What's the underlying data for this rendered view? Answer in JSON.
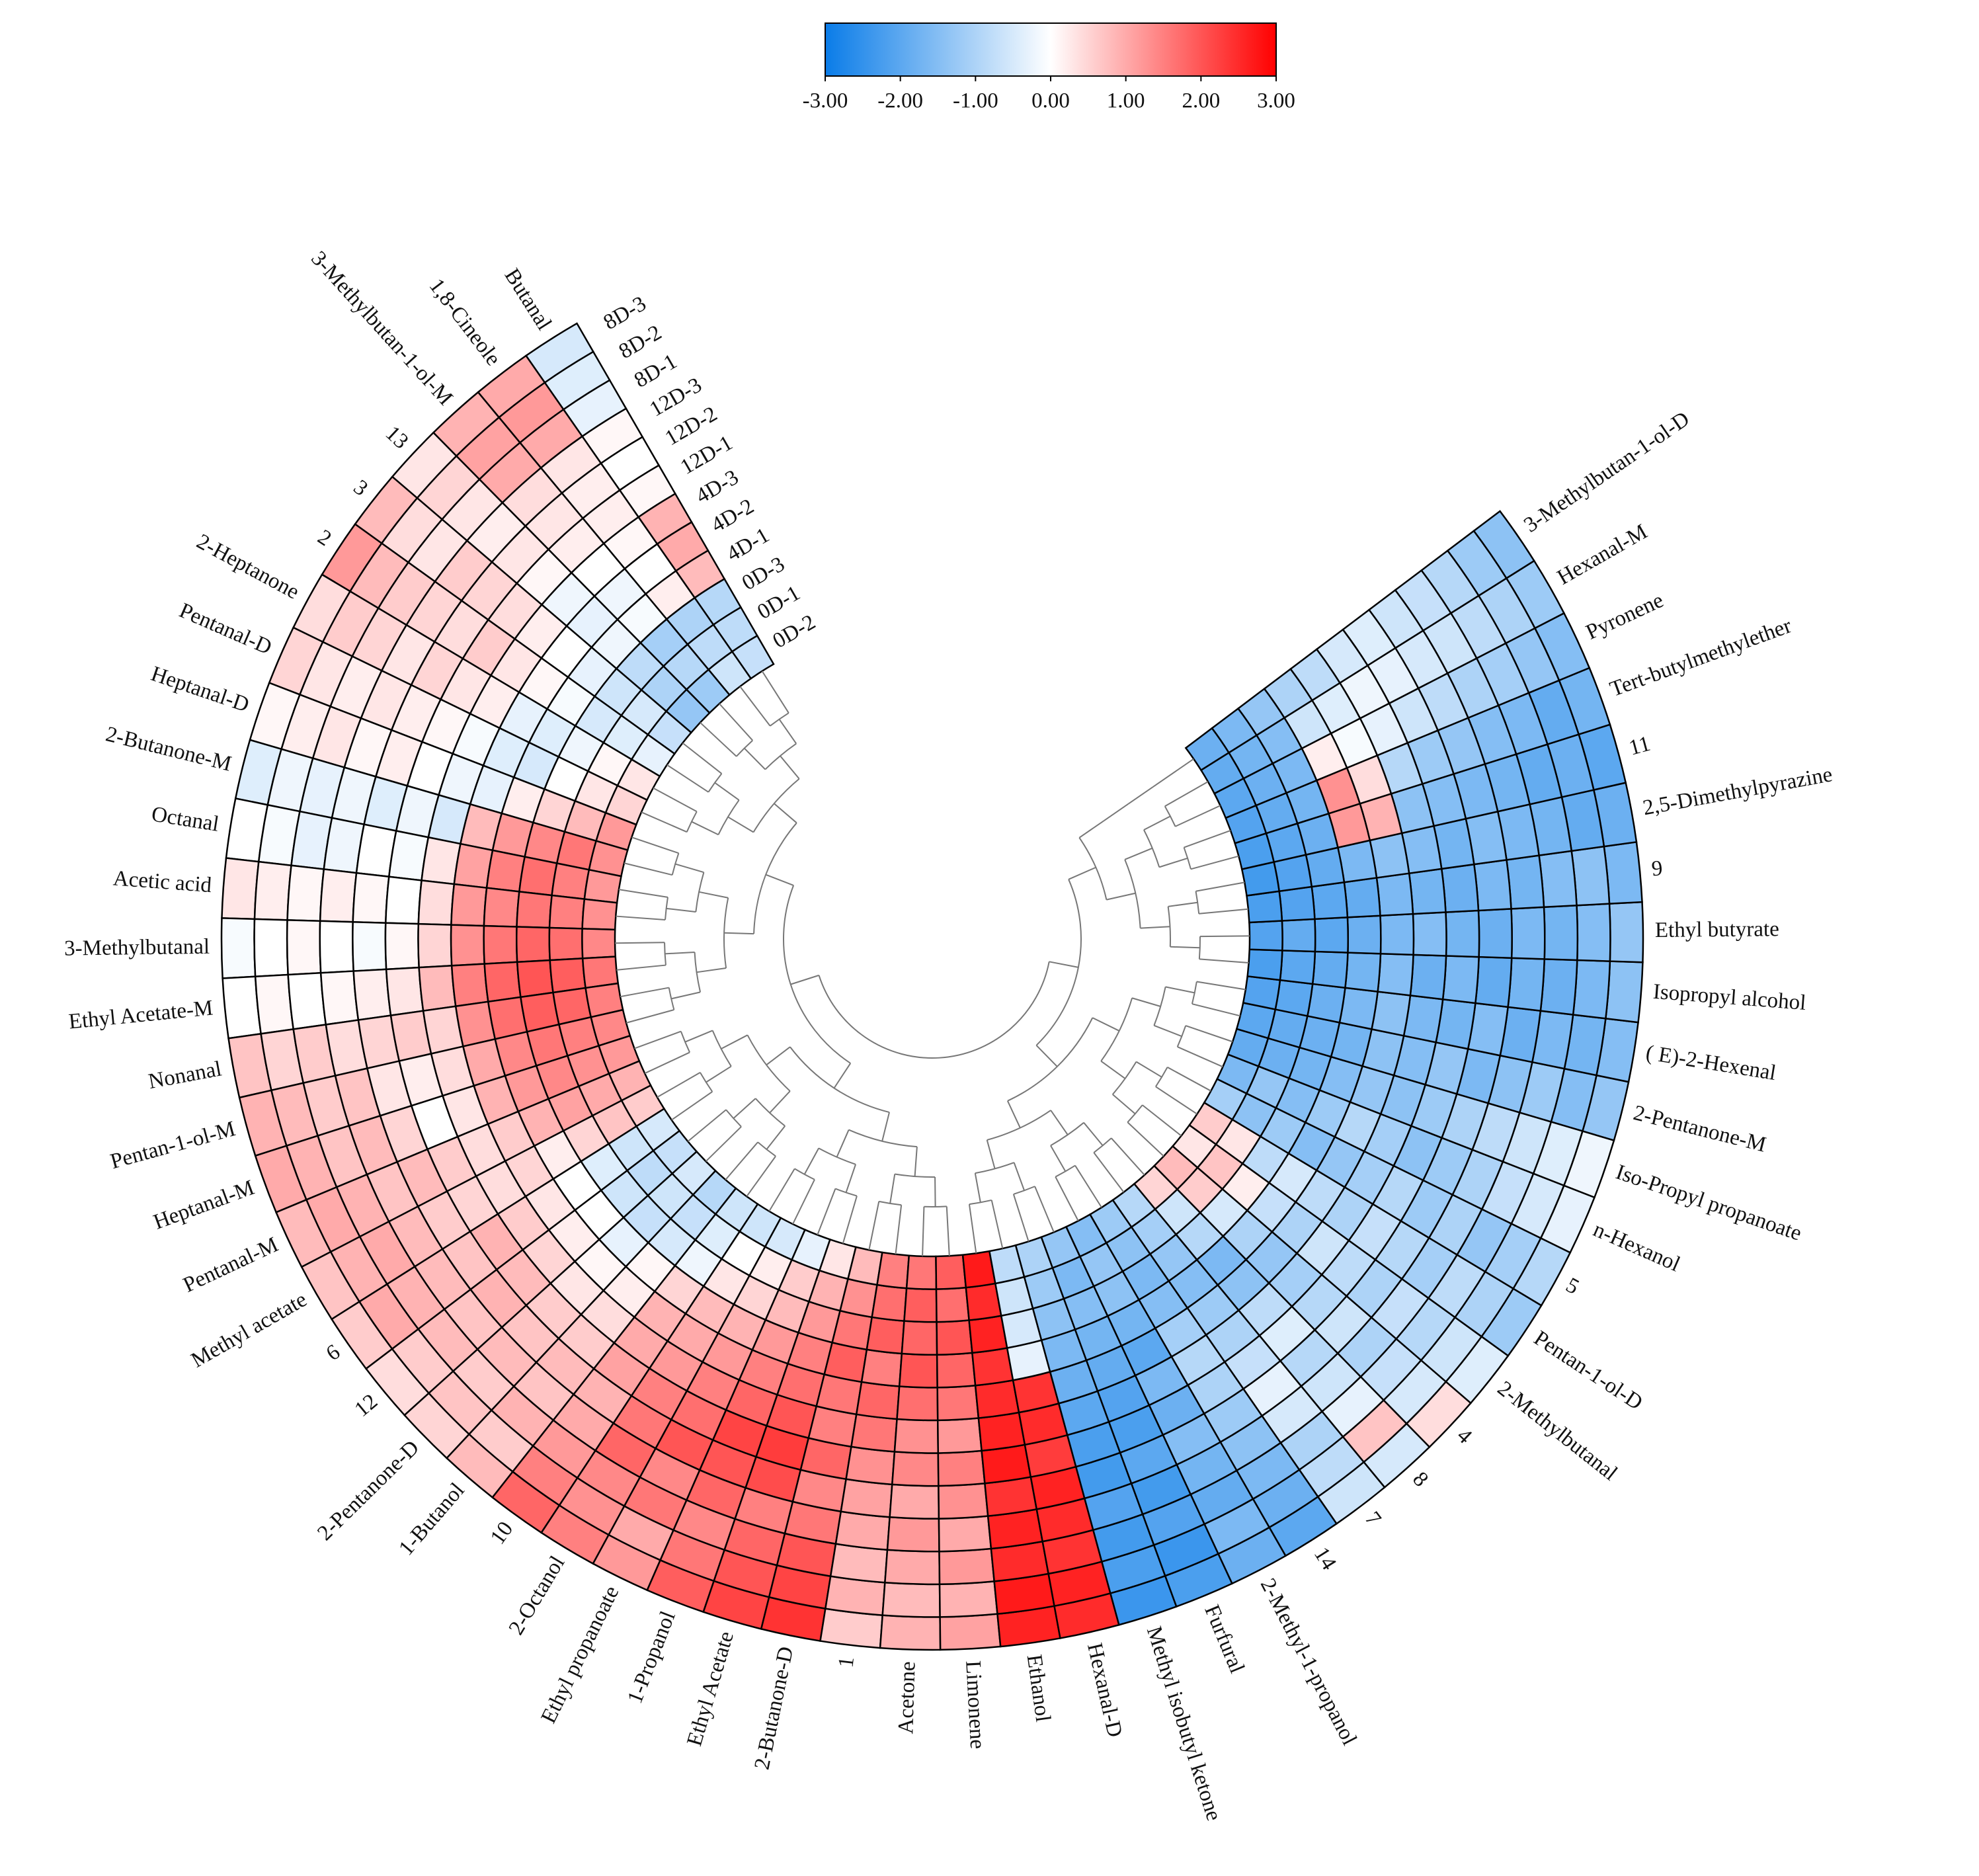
{
  "chart_data": {
    "type": "heatmap",
    "categories": [
      "Butanal",
      "1,8-Cineole",
      "3-Methylbutan-1-ol-M",
      "13",
      "3",
      "2",
      "2-Heptanone",
      "Pentanal-D",
      "Heptanal-D",
      "2-Butanone-M",
      "Octanal",
      "Acetic acid",
      "3-Methylbutanal",
      "Ethyl Acetate-M",
      "Nonanal",
      "Pentan-1-ol-M",
      "Heptanal-M",
      "Pentanal-M",
      "Methyl acetate",
      "6",
      "12",
      "2-Pentanone-D",
      "1-Butanol",
      "10",
      "2-Octanol",
      "Ethyl propanoate",
      "1-Propanol",
      "Ethyl Acetate",
      "2-Butanone-D",
      "1",
      "Acetone",
      "Limonene",
      "Ethanol",
      "Hexanal-D",
      "Methyl isobutyl ketone",
      "Furfural",
      "2-Methyl-1-propanol",
      "14",
      "7",
      "8",
      "4",
      "2-Methylbutanal",
      "Pentan-1-ol-D",
      "5",
      "n-Hexanol",
      "Iso-Propyl propanoate",
      "2-Pentanone-M",
      "( E)-2-Hexenal",
      "Isopropyl alcohol",
      "Ethyl butyrate",
      "9",
      "2,5-Dimethylpyrazine",
      "11",
      "Tert-butylmethylether",
      "Pyronene",
      "Hexanal-M",
      "3-Methylbutan-1-ol-D"
    ],
    "rings": [
      "8D-3",
      "8D-2",
      "8D-1",
      "12D-3",
      "12D-2",
      "12D-1",
      "4D-3",
      "4D-2",
      "4D-1",
      "0D-3",
      "0D-1",
      "0D-2"
    ],
    "values": [
      [
        -0.5,
        -0.4,
        -0.3,
        0.1,
        0,
        0.1,
        0.9,
        1.0,
        0.8,
        -0.9,
        -0.8,
        -0.7
      ],
      [
        1.0,
        1.2,
        1.0,
        0.3,
        0.2,
        0.2,
        0.1,
        0,
        0.2,
        -1.0,
        -0.8,
        -0.6
      ],
      [
        0.9,
        1.1,
        1.0,
        0.4,
        0.3,
        0.2,
        0,
        -0.2,
        -0.1,
        -1.1,
        -0.9,
        -1.2
      ],
      [
        0.3,
        0.5,
        0.3,
        0.2,
        0.3,
        0.1,
        -0.2,
        -0.3,
        -0.2,
        -0.8,
        -1.0,
        -1.3
      ],
      [
        0.8,
        0.4,
        0.3,
        0.6,
        0.5,
        0.4,
        0.2,
        0,
        -0.3,
        -0.6,
        -0.5,
        -0.7
      ],
      [
        1.2,
        0.8,
        0.6,
        0.5,
        0.4,
        0.6,
        0.3,
        0.1,
        -0.1,
        -0.5,
        -0.4,
        -0.3
      ],
      [
        0.4,
        0.6,
        0.5,
        0.3,
        0.5,
        0.3,
        0.2,
        -0.3,
        -0.4,
        -0.2,
        0.1,
        0.3
      ],
      [
        0.5,
        0.3,
        0.2,
        0.3,
        0.2,
        0.1,
        -0.1,
        -0.4,
        -0.5,
        0,
        0.3,
        0.5
      ],
      [
        0.1,
        0.2,
        0.3,
        0.1,
        0.2,
        0,
        -0.2,
        -0.3,
        0.2,
        0.5,
        0.8,
        1.2
      ],
      [
        -0.4,
        -0.2,
        -0.3,
        -0.2,
        -0.4,
        -0.2,
        -0.5,
        0.8,
        1.2,
        1.4,
        1.6,
        1.3
      ],
      [
        0,
        -0.1,
        -0.3,
        -0.2,
        0,
        -0.1,
        0.3,
        1.1,
        1.5,
        1.7,
        1.5,
        1.2
      ],
      [
        0.3,
        0.2,
        0.1,
        0.2,
        0.1,
        0,
        0.4,
        1.2,
        1.4,
        1.6,
        1.5,
        1.3
      ],
      [
        -0.1,
        0,
        0.1,
        0,
        -0.1,
        0.1,
        0.5,
        1.3,
        1.6,
        1.8,
        1.7,
        1.4
      ],
      [
        0,
        0.1,
        0,
        0.1,
        0.2,
        0.3,
        0.8,
        1.5,
        1.8,
        2.0,
        1.9,
        1.6
      ],
      [
        0.7,
        0.5,
        0.6,
        0.4,
        0.5,
        0.6,
        0.5,
        1.3,
        1.7,
        1.9,
        1.8,
        1.5
      ],
      [
        0.9,
        0.8,
        0.6,
        0.7,
        0.3,
        0.2,
        0.4,
        1.0,
        1.4,
        1.6,
        1.5,
        1.4
      ],
      [
        1.0,
        0.9,
        0.7,
        0.8,
        0.5,
        0,
        0.3,
        0.9,
        1.2,
        1.4,
        1.3,
        1.2
      ],
      [
        0.8,
        1.0,
        0.9,
        0.7,
        0.8,
        0.6,
        0.4,
        0.6,
        0.9,
        1.1,
        1.0,
        0.9
      ],
      [
        0.7,
        0.9,
        1.0,
        0.8,
        0.6,
        0.5,
        0.4,
        0.5,
        0.2,
        0.5,
        0.7,
        0.6
      ],
      [
        0.6,
        1.0,
        0.9,
        0.8,
        0.7,
        0.9,
        0.6,
        0.3,
        0,
        -0.4,
        -0.6,
        -0.5
      ],
      [
        0.4,
        0.6,
        0.8,
        0.7,
        0.9,
        0.8,
        0.5,
        0.2,
        0,
        -0.6,
        -0.8,
        -0.7
      ],
      [
        0.5,
        0.7,
        0.6,
        0.8,
        0.7,
        0.6,
        0.3,
        0.1,
        -0.3,
        -0.7,
        -0.6,
        -0.5
      ],
      [
        0.8,
        0.6,
        0.9,
        0.7,
        0.8,
        0.6,
        0.4,
        0.2,
        0.1,
        -0.5,
        -0.7,
        -0.9
      ],
      [
        1.8,
        1.5,
        1.2,
        1.0,
        0.9,
        1.1,
        1.0,
        0.9,
        0.5,
        -0.2,
        -0.4,
        -0.6
      ],
      [
        1.5,
        1.3,
        1.4,
        1.8,
        1.6,
        1.5,
        1.2,
        1.0,
        0.8,
        0.3,
        0,
        -0.6
      ],
      [
        1.2,
        1.0,
        1.6,
        1.4,
        2.0,
        1.7,
        1.5,
        1.2,
        0.9,
        0.5,
        0.2,
        -0.5
      ],
      [
        1.9,
        1.6,
        1.4,
        1.8,
        2.0,
        2.2,
        1.8,
        1.5,
        1.2,
        0.8,
        0.6,
        -0.3
      ],
      [
        2.2,
        2.0,
        1.8,
        1.5,
        2.1,
        2.3,
        2.0,
        1.7,
        1.5,
        1.2,
        0.9,
        0.3
      ],
      [
        2.4,
        2.2,
        2.0,
        1.6,
        1.4,
        1.8,
        1.5,
        1.6,
        1.9,
        1.6,
        1.3,
        0.8
      ],
      [
        0.6,
        0.9,
        0.8,
        1.0,
        1.1,
        1.3,
        1.6,
        1.8,
        1.5,
        1.9,
        1.7,
        1.5
      ],
      [
        0.9,
        0.8,
        1.0,
        1.2,
        1.0,
        1.4,
        1.3,
        1.7,
        2.0,
        1.8,
        1.9,
        1.6
      ],
      [
        1.1,
        0.9,
        1.2,
        1.0,
        1.3,
        1.5,
        1.2,
        1.6,
        1.8,
        2.0,
        1.7,
        1.9
      ],
      [
        2.6,
        2.7,
        2.5,
        2.6,
        2.4,
        2.7,
        2.6,
        2.5,
        2.4,
        2.6,
        2.5,
        2.7
      ],
      [
        2.5,
        2.6,
        2.4,
        2.5,
        2.6,
        2.3,
        2.5,
        2.4,
        -0.3,
        -0.5,
        -0.6,
        -0.8
      ],
      [
        -2.4,
        -2.2,
        -2.3,
        -2.1,
        -2.3,
        -2.2,
        -2.0,
        -1.8,
        -1.6,
        -1.4,
        -1.2,
        -1.0
      ],
      [
        -2.2,
        -2.4,
        -2.1,
        -2.3,
        -2.0,
        -2.2,
        -2.1,
        -1.9,
        -1.7,
        -1.5,
        -1.6,
        -1.3
      ],
      [
        -1.8,
        -1.6,
        -1.9,
        -1.7,
        -1.5,
        -1.8,
        -1.6,
        -2.0,
        -1.7,
        -1.4,
        -1.3,
        -1.5
      ],
      [
        -2.0,
        -1.8,
        -1.6,
        -1.4,
        -1.2,
        -1.0,
        -0.9,
        -1.1,
        -1.5,
        -1.6,
        -1.4,
        -1.2
      ],
      [
        -0.6,
        -0.8,
        -1.0,
        -0.5,
        -0.3,
        -0.7,
        -1.0,
        -1.2,
        -1.5,
        -1.3,
        -1.1,
        -0.9
      ],
      [
        -0.5,
        0.7,
        -0.3,
        -0.6,
        -0.9,
        -0.4,
        -0.8,
        -1.4,
        -1.6,
        -0.9,
        -0.6,
        0.5
      ],
      [
        0.4,
        -0.5,
        -0.7,
        -1.0,
        -0.6,
        -0.9,
        -1.1,
        -1.3,
        -1.0,
        -0.5,
        0.6,
        0.8
      ],
      [
        -0.4,
        -0.6,
        -0.9,
        -0.7,
        -1.0,
        -0.8,
        -0.6,
        -1.0,
        -0.7,
        0.2,
        0.7,
        0.3
      ],
      [
        -1.2,
        -1.0,
        -0.8,
        -1.1,
        -0.9,
        -0.7,
        -1.0,
        -0.8,
        -0.5,
        -0.8,
        0.3,
        0.6
      ],
      [
        -0.9,
        -1.1,
        -1.3,
        -1.0,
        -1.2,
        -0.9,
        -1.1,
        -1.3,
        -1.5,
        -1.2,
        -1.4,
        -1.1
      ],
      [
        -0.3,
        -0.5,
        -0.7,
        -1.0,
        -1.2,
        -1.4,
        -1.1,
        -0.9,
        -1.2,
        -1.5,
        -1.3,
        -1.6
      ],
      [
        -0.2,
        -0.4,
        -0.6,
        -0.8,
        -1.0,
        -1.2,
        -1.4,
        -1.3,
        -1.5,
        -1.7,
        -1.8,
        -1.9
      ],
      [
        -1.3,
        -1.5,
        -1.2,
        -1.4,
        -1.6,
        -1.3,
        -1.5,
        -1.4,
        -1.7,
        -1.8,
        -1.9,
        -2.0
      ],
      [
        -1.5,
        -1.7,
        -1.6,
        -1.8,
        -1.5,
        -1.7,
        -1.6,
        -1.4,
        -1.6,
        -1.8,
        -2.0,
        -2.1
      ],
      [
        -1.4,
        -1.6,
        -1.8,
        -1.7,
        -1.9,
        -1.6,
        -1.8,
        -1.5,
        -1.7,
        -1.9,
        -2.0,
        -2.2
      ],
      [
        -1.3,
        -1.5,
        -1.7,
        -1.6,
        -1.8,
        -1.7,
        -1.5,
        -1.6,
        -1.8,
        -2.0,
        -1.9,
        -2.1
      ],
      [
        -1.6,
        -1.4,
        -1.5,
        -1.7,
        -1.6,
        -1.8,
        -1.7,
        -1.6,
        -1.9,
        -2.0,
        -2.1,
        -2.2
      ],
      [
        -1.8,
        -1.9,
        -1.7,
        -1.6,
        -1.5,
        -1.7,
        -1.5,
        -1.4,
        -1.6,
        -1.9,
        -2.1,
        -2.3
      ],
      [
        -2.0,
        -1.8,
        -1.9,
        -1.7,
        -1.6,
        -1.5,
        -1.4,
        0.9,
        1.2,
        -1.8,
        -2.0,
        -2.2
      ],
      [
        -1.7,
        -1.9,
        -1.6,
        -1.5,
        -1.3,
        -1.2,
        -0.9,
        0.4,
        1.3,
        -1.7,
        -1.9,
        -2.1
      ],
      [
        -1.5,
        -1.3,
        -1.1,
        -1.0,
        -0.8,
        -0.6,
        -0.3,
        -0.1,
        0.2,
        -1.6,
        -1.8,
        -2.0
      ],
      [
        -1.2,
        -1.0,
        -0.8,
        -0.6,
        -0.5,
        -0.3,
        -0.2,
        -0.4,
        -0.6,
        -1.5,
        -1.7,
        -1.9
      ],
      [
        -1.4,
        -1.2,
        -0.9,
        -0.7,
        -0.6,
        -0.4,
        -0.5,
        -0.8,
        -1.0,
        -1.3,
        -1.6,
        -1.8
      ]
    ],
    "clim": [
      -3,
      3
    ],
    "cticks": [
      {
        "value": -3,
        "label": "-3.00"
      },
      {
        "value": -2,
        "label": "-2.00"
      },
      {
        "value": -1,
        "label": "-1.00"
      },
      {
        "value": 0,
        "label": "0.00"
      },
      {
        "value": 1,
        "label": "1.00"
      },
      {
        "value": 2,
        "label": "2.00"
      },
      {
        "value": 3,
        "label": "3.00"
      }
    ],
    "colors": [
      "#0a7ce8",
      "#ffffff",
      "#ff0000"
    ]
  }
}
